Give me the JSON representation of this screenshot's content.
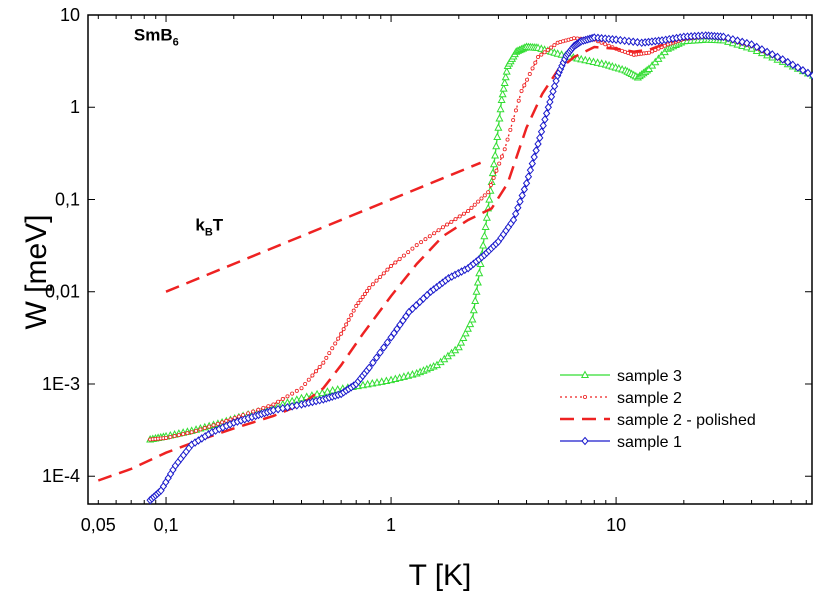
{
  "chart_data": {
    "type": "line",
    "title": "",
    "xlabel": "T [K]",
    "ylabel": "W [meV]",
    "xscale": "log",
    "yscale": "log",
    "xlim": [
      0.045,
      75
    ],
    "ylim": [
      5e-05,
      10
    ],
    "grid": false,
    "legend_position": "bottom-right",
    "x_ticks": [
      {
        "value": 0.05,
        "label": "0,05"
      },
      {
        "value": 0.1,
        "label": "0,1"
      },
      {
        "value": 1,
        "label": "1"
      },
      {
        "value": 10,
        "label": "10"
      }
    ],
    "y_ticks": [
      {
        "value": 0.0001,
        "label": "1E-4"
      },
      {
        "value": 0.001,
        "label": "1E-3"
      },
      {
        "value": 0.01,
        "label": "0,01"
      },
      {
        "value": 0.1,
        "label": "0,1"
      },
      {
        "value": 1,
        "label": "1"
      },
      {
        "value": 10,
        "label": "10"
      }
    ],
    "annotations": [
      {
        "text": "SmB",
        "sub": "6",
        "x": 0.072,
        "y": 5.3
      },
      {
        "text": "k",
        "sub": "B",
        "tail": "T",
        "x": 0.135,
        "y": 0.046
      }
    ],
    "series": [
      {
        "name": "sample 3",
        "color": "#33dd33",
        "line_style": "solid",
        "marker": "triangle",
        "x": [
          0.085,
          0.1,
          0.13,
          0.17,
          0.22,
          0.3,
          0.4,
          0.55,
          0.75,
          1.0,
          1.3,
          1.6,
          2.0,
          2.3,
          2.5,
          2.7,
          2.9,
          3.1,
          3.3,
          3.6,
          4.0,
          4.5,
          5.5,
          7,
          9,
          11,
          12.5,
          14,
          17,
          20,
          25,
          30,
          40,
          55,
          75
        ],
        "y": [
          0.00025,
          0.00027,
          0.00031,
          0.00037,
          0.00045,
          0.00056,
          0.0007,
          0.00085,
          0.00097,
          0.0011,
          0.0013,
          0.0016,
          0.0025,
          0.005,
          0.02,
          0.08,
          0.3,
          1.2,
          2.8,
          4.0,
          4.5,
          4.4,
          3.8,
          3.3,
          2.9,
          2.5,
          2.1,
          2.6,
          4.3,
          5.2,
          5.4,
          5.3,
          4.3,
          3.1,
          2.2
        ]
      },
      {
        "name": "sample 2",
        "color": "#ee2222",
        "line_style": "dotted",
        "marker": "dot",
        "x": [
          0.085,
          0.1,
          0.13,
          0.17,
          0.22,
          0.3,
          0.4,
          0.5,
          0.6,
          0.7,
          0.8,
          1.0,
          1.3,
          1.7,
          2.2,
          2.7,
          3.2,
          3.8,
          4.5,
          5.5,
          6.5,
          8,
          10,
          12,
          14,
          17,
          20,
          25,
          30,
          40,
          55,
          75
        ],
        "y": [
          0.00025,
          0.00026,
          0.0003,
          0.00037,
          0.00046,
          0.0006,
          0.0009,
          0.0017,
          0.0035,
          0.007,
          0.011,
          0.019,
          0.032,
          0.05,
          0.075,
          0.12,
          0.35,
          1.5,
          3.5,
          5.0,
          5.6,
          5.4,
          4.3,
          3.7,
          3.9,
          4.8,
          5.5,
          5.8,
          5.6,
          4.6,
          3.2,
          2.2
        ]
      },
      {
        "name": "sample 2 - polished",
        "color": "#ee2222",
        "line_style": "dashed",
        "marker": "none",
        "x": [
          0.05,
          0.07,
          0.1,
          0.15,
          0.2,
          0.3,
          0.4,
          0.5,
          0.6,
          0.75,
          1.0,
          1.3,
          1.7,
          2.2,
          2.8,
          3.3,
          4.0,
          4.7,
          5.5,
          6.5,
          8,
          10,
          12,
          14,
          17,
          20,
          25,
          30,
          40,
          55,
          75
        ],
        "y": [
          9e-05,
          0.00012,
          0.00018,
          0.00026,
          0.00033,
          0.00045,
          0.0006,
          0.0009,
          0.0016,
          0.0035,
          0.009,
          0.02,
          0.04,
          0.06,
          0.08,
          0.15,
          0.6,
          1.4,
          2.5,
          3.5,
          4.5,
          4.3,
          4.0,
          4.2,
          5.0,
          5.6,
          5.8,
          5.6,
          4.6,
          3.2,
          2.2
        ]
      },
      {
        "name": "sample 1",
        "color": "#1a1acc",
        "line_style": "solid",
        "marker": "diamond",
        "x": [
          0.085,
          0.095,
          0.11,
          0.13,
          0.16,
          0.2,
          0.25,
          0.3,
          0.4,
          0.5,
          0.6,
          0.7,
          0.8,
          1.0,
          1.2,
          1.5,
          1.8,
          2.2,
          2.6,
          3.0,
          3.5,
          4.0,
          4.5,
          5.0,
          5.5,
          6.0,
          6.5,
          7,
          8,
          10,
          13,
          16,
          20,
          25,
          30,
          40,
          55,
          75
        ],
        "y": [
          5.5e-05,
          7e-05,
          0.00013,
          0.00022,
          0.0003,
          0.00038,
          0.00045,
          0.00052,
          0.0006,
          0.00068,
          0.00078,
          0.001,
          0.0015,
          0.0032,
          0.006,
          0.01,
          0.014,
          0.018,
          0.025,
          0.035,
          0.06,
          0.15,
          0.4,
          1.0,
          2.2,
          3.6,
          4.6,
          5.2,
          5.7,
          5.4,
          5.0,
          5.3,
          5.8,
          6.0,
          5.8,
          4.8,
          3.3,
          2.2
        ]
      },
      {
        "name": "k_B T",
        "color": "#ee2222",
        "line_style": "dashed",
        "marker": "none",
        "show_in_legend": false,
        "x": [
          0.1,
          2.5
        ],
        "y": [
          0.01,
          0.25
        ]
      }
    ],
    "legend": [
      {
        "label": "sample 3",
        "series": 0
      },
      {
        "label": "sample 2",
        "series": 1
      },
      {
        "label": "sample 2 - polished",
        "series": 2
      },
      {
        "label": "sample 1",
        "series": 3
      }
    ]
  }
}
